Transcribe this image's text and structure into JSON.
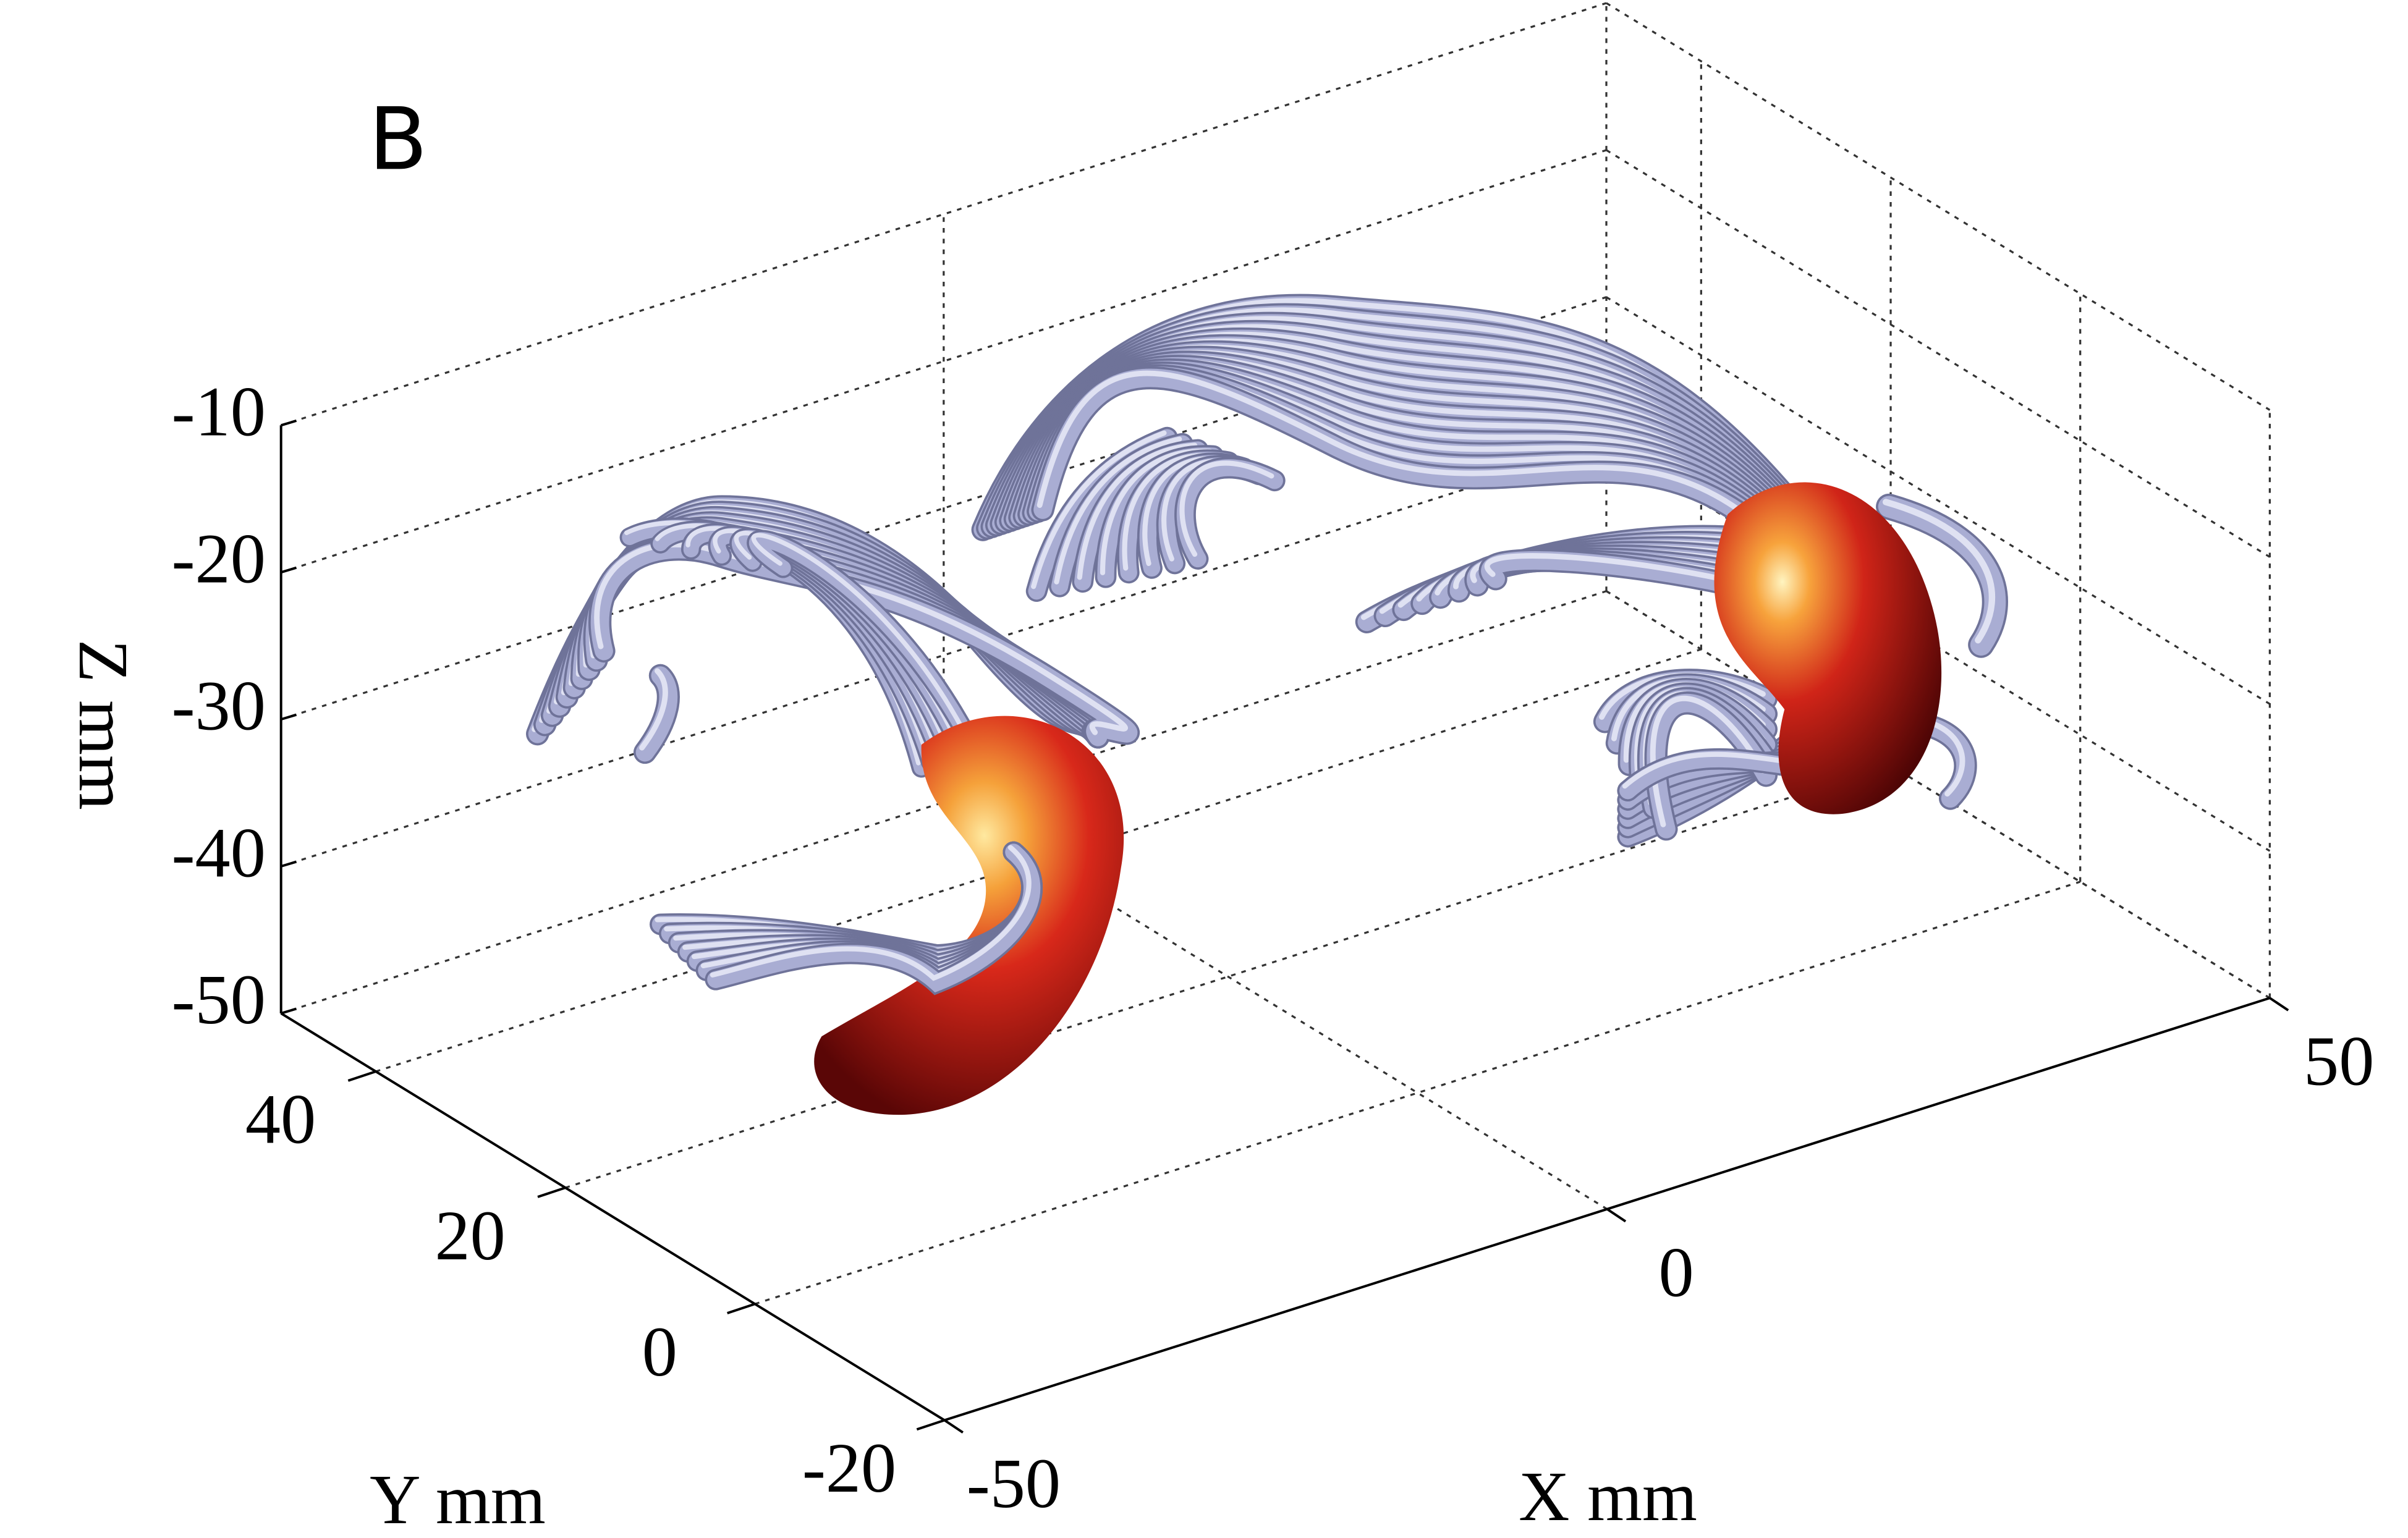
{
  "chart_data": {
    "type": "3d-tracts",
    "panel_label": "B",
    "xlabel": "X mm",
    "ylabel": "Y mm",
    "zlabel": "Z mm",
    "xlim": [
      -50,
      50
    ],
    "xticks": [
      -50,
      0,
      50
    ],
    "ylim": [
      -20,
      50
    ],
    "yticks": [
      -20,
      0,
      20,
      40
    ],
    "zlim": [
      -50,
      -10
    ],
    "zticks": [
      -50,
      -40,
      -30,
      -20,
      -10
    ],
    "grid": true
  }
}
